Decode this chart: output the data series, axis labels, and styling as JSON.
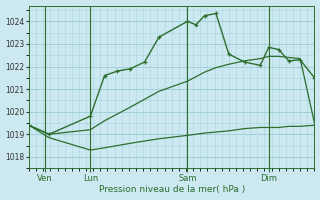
{
  "title": "Pression niveau de la mer( hPa )",
  "background_color": "#cce8f0",
  "grid_color": "#99ccd8",
  "line_color": "#2d6e2d",
  "ylim": [
    1017.5,
    1024.7
  ],
  "yticks": [
    1018,
    1019,
    1020,
    1021,
    1022,
    1023,
    1024
  ],
  "day_positions": [
    0.055,
    0.215,
    0.555,
    0.84
  ],
  "xlabels": [
    "Ven",
    "Lun",
    "Sam",
    "Dim"
  ],
  "vline_positions": [
    0.055,
    0.215,
    0.555,
    0.84
  ],
  "series1_x": [
    0.0,
    0.07,
    0.215,
    0.265,
    0.31,
    0.355,
    0.405,
    0.455,
    0.555,
    0.585,
    0.615,
    0.655,
    0.7,
    0.755,
    0.81,
    0.84,
    0.875,
    0.91,
    0.95,
    1.0
  ],
  "series1_y": [
    1019.4,
    1019.0,
    1019.8,
    1021.6,
    1021.8,
    1021.9,
    1022.2,
    1023.3,
    1024.0,
    1023.85,
    1024.25,
    1024.35,
    1022.55,
    1022.2,
    1022.05,
    1022.85,
    1022.75,
    1022.25,
    1022.3,
    1021.5
  ],
  "series2_x": [
    0.0,
    0.07,
    0.215,
    0.265,
    0.31,
    0.355,
    0.405,
    0.455,
    0.555,
    0.585,
    0.615,
    0.655,
    0.7,
    0.755,
    0.81,
    0.84,
    0.875,
    0.91,
    0.95,
    1.0
  ],
  "series2_y": [
    1019.4,
    1019.0,
    1019.2,
    1019.6,
    1019.9,
    1020.2,
    1020.55,
    1020.9,
    1021.35,
    1021.55,
    1021.75,
    1021.95,
    1022.1,
    1022.25,
    1022.35,
    1022.45,
    1022.45,
    1022.4,
    1022.35,
    1019.5
  ],
  "series3_x": [
    0.0,
    0.07,
    0.215,
    0.265,
    0.31,
    0.355,
    0.405,
    0.455,
    0.555,
    0.585,
    0.615,
    0.655,
    0.7,
    0.755,
    0.81,
    0.84,
    0.875,
    0.91,
    0.95,
    1.0
  ],
  "series3_y": [
    1019.4,
    1018.85,
    1018.3,
    1018.4,
    1018.5,
    1018.6,
    1018.7,
    1018.8,
    1018.95,
    1019.0,
    1019.05,
    1019.1,
    1019.15,
    1019.25,
    1019.3,
    1019.3,
    1019.3,
    1019.35,
    1019.35,
    1019.4
  ]
}
